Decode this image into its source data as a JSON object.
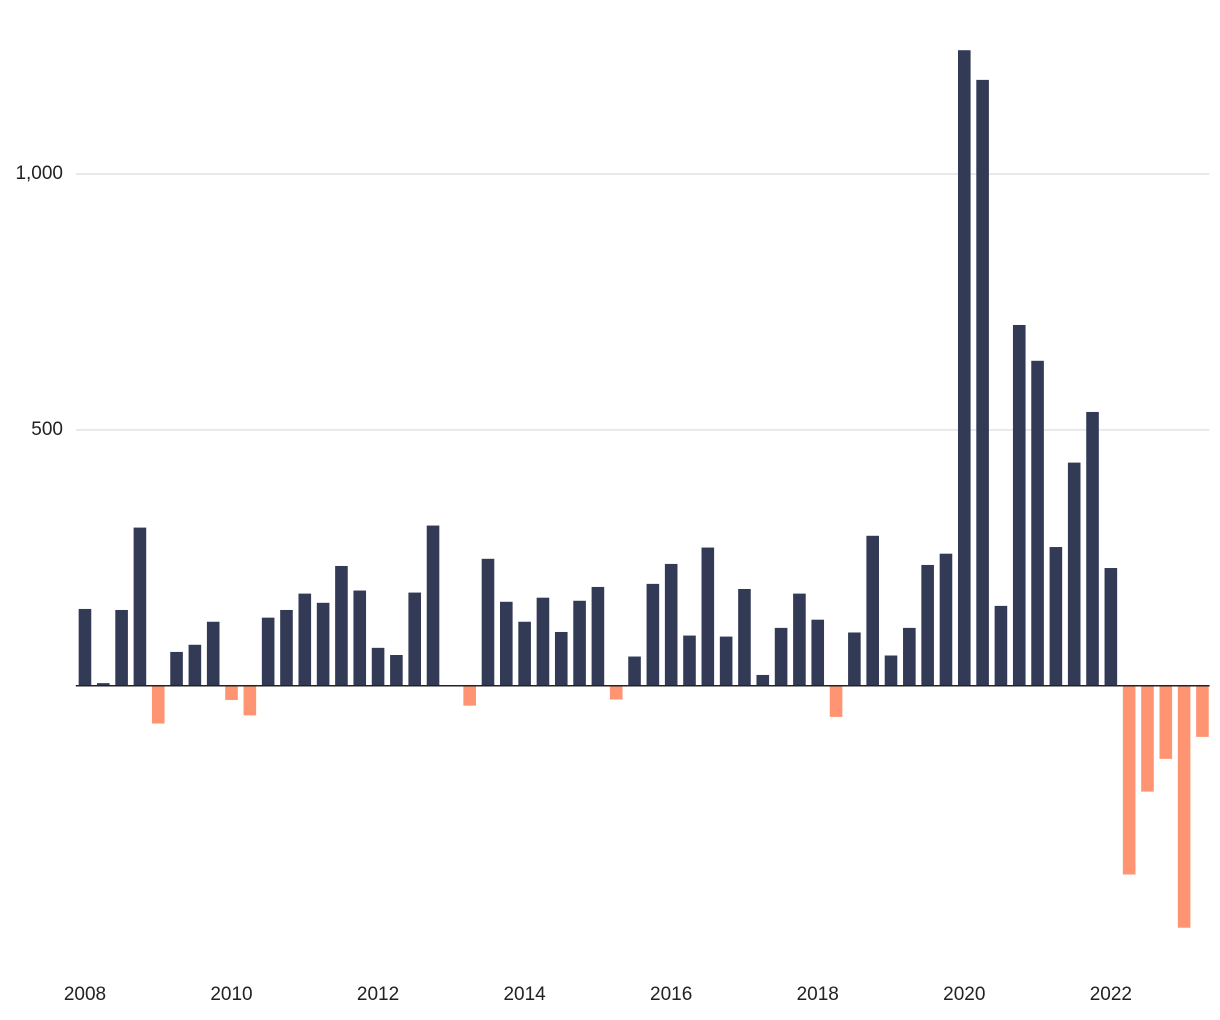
{
  "chart_data": {
    "type": "bar",
    "categories": [
      "2008",
      null,
      null,
      null,
      null,
      null,
      null,
      null,
      "2010",
      null,
      null,
      null,
      null,
      null,
      null,
      null,
      "2012",
      null,
      null,
      null,
      null,
      null,
      null,
      null,
      "2014",
      null,
      null,
      null,
      null,
      null,
      null,
      null,
      "2016",
      null,
      null,
      null,
      null,
      null,
      null,
      null,
      "2018",
      null,
      null,
      null,
      null,
      null,
      null,
      null,
      "2020",
      null,
      null,
      null,
      null,
      null,
      null,
      null,
      "2022",
      null,
      null,
      null,
      null,
      null
    ],
    "values": [
      150,
      5,
      148,
      309,
      -74,
      66,
      80,
      125,
      -28,
      -58,
      133,
      148,
      180,
      162,
      234,
      186,
      74,
      60,
      182,
      313,
      0,
      -39,
      248,
      164,
      125,
      172,
      105,
      166,
      193,
      -27,
      57,
      199,
      238,
      98,
      270,
      96,
      189,
      21,
      113,
      180,
      129,
      -61,
      104,
      293,
      59,
      113,
      236,
      258,
      1242,
      1184,
      156,
      705,
      635,
      271,
      436,
      535,
      230,
      -369,
      -207,
      -143,
      -473,
      -100
    ],
    "color": "#323a56",
    "negative_color": "#ff9472",
    "ylim": [
      -540,
      1260
    ],
    "yticks": [
      500,
      {
        "value": 1000,
        "label": "1,000"
      }
    ],
    "grid": true
  }
}
